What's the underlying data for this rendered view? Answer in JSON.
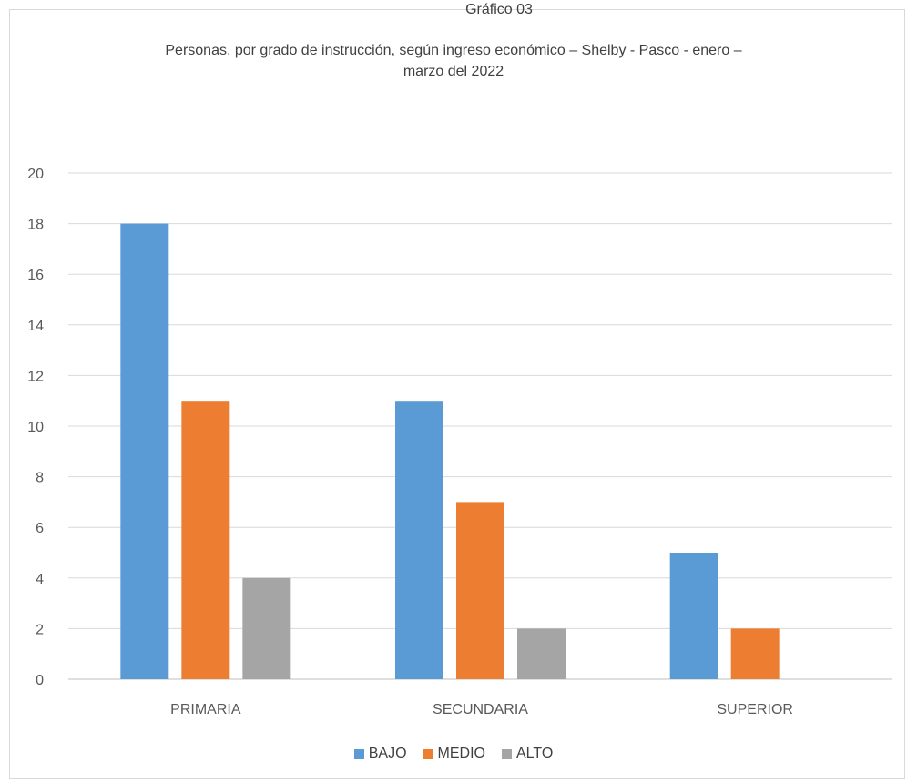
{
  "chart_data": {
    "type": "bar",
    "title_lines": [
      "Gráfico  03",
      "Personas, por grado de instrucción, según ingreso económico – Shelby - Pasco - enero –",
      "marzo del 2022"
    ],
    "categories": [
      "PRIMARIA",
      "SECUNDARIA",
      "SUPERIOR"
    ],
    "series": [
      {
        "name": "BAJO",
        "color": "#5b9bd5",
        "values": [
          18,
          11,
          5
        ]
      },
      {
        "name": "MEDIO",
        "color": "#ed7d31",
        "values": [
          11,
          7,
          2
        ]
      },
      {
        "name": "ALTO",
        "color": "#a5a5a5",
        "values": [
          4,
          2,
          0
        ]
      }
    ],
    "xlabel": "",
    "ylabel": "",
    "ylim": [
      0,
      20
    ],
    "yticks": [
      "0",
      "2",
      "4",
      "6",
      "8",
      "10",
      "12",
      "14",
      "16",
      "18",
      "20"
    ],
    "grid": true,
    "legend_position": "bottom"
  }
}
